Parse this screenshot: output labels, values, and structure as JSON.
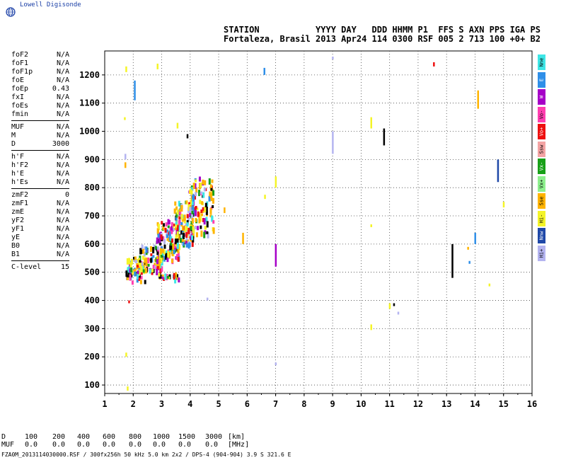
{
  "logo": {
    "text": "Lowell Digisonde",
    "icon": "globe-icon"
  },
  "header": {
    "labels_line": "STATION           YYYY DAY   DDD HHMM P1  FFS S AXN PPS IGA PS",
    "values_line": "Fortaleza, Brasil 2013 Apr24 114 0300 RSF 005 2 713 100 +0+ B2"
  },
  "params": {
    "groups": [
      [
        {
          "label": "foF2",
          "value": "N/A"
        },
        {
          "label": "foF1",
          "value": "N/A"
        },
        {
          "label": "foF1p",
          "value": "N/A"
        },
        {
          "label": "foE",
          "value": "N/A"
        },
        {
          "label": "foEp",
          "value": "0.43"
        },
        {
          "label": "fxI",
          "value": "N/A"
        },
        {
          "label": "foEs",
          "value": "N/A"
        },
        {
          "label": "fmin",
          "value": "N/A"
        }
      ],
      [
        {
          "label": "MUF",
          "value": "N/A"
        },
        {
          "label": "M",
          "value": "N/A"
        },
        {
          "label": "D",
          "value": "3000"
        }
      ],
      [
        {
          "label": "h'F",
          "value": "N/A"
        },
        {
          "label": "h'F2",
          "value": "N/A"
        },
        {
          "label": "h'E",
          "value": "N/A"
        },
        {
          "label": "h'Es",
          "value": "N/A"
        }
      ],
      [
        {
          "label": "zmF2",
          "value": "0"
        },
        {
          "label": "zmF1",
          "value": "N/A"
        },
        {
          "label": "zmE",
          "value": "N/A"
        },
        {
          "label": "yF2",
          "value": "N/A"
        },
        {
          "label": "yF1",
          "value": "N/A"
        },
        {
          "label": "yE",
          "value": "N/A"
        },
        {
          "label": "B0",
          "value": "N/A"
        },
        {
          "label": "B1",
          "value": "N/A"
        }
      ],
      [
        {
          "label": "C-level",
          "value": "15"
        }
      ]
    ]
  },
  "legend": [
    {
      "label": "Nne",
      "color": "#3ee6e6"
    },
    {
      "label": "E",
      "color": "#2f8fe8"
    },
    {
      "label": "W",
      "color": "#a600c8"
    },
    {
      "label": "Vo-",
      "color": "#ff3fb0"
    },
    {
      "label": "Vo+",
      "color": "#ee1010"
    },
    {
      "label": "Ssw",
      "color": "#f4a4a4"
    },
    {
      "label": "Vx-",
      "color": "#18a018"
    },
    {
      "label": "Vx+",
      "color": "#8ef08e"
    },
    {
      "label": "Sse",
      "color": "#ffb400"
    },
    {
      "label": "Hi-",
      "color": "#f4f428"
    },
    {
      "label": "Nnw",
      "color": "#1f48a8"
    },
    {
      "label": "Hi+",
      "color": "#b4b4f0"
    }
  ],
  "chart_data": {
    "type": "scatter",
    "x_ticks": [
      "1",
      "2",
      "3",
      "4",
      "5",
      "6",
      "7",
      "8",
      "9",
      "10",
      "11",
      "12",
      "13",
      "14",
      "15",
      "16"
    ],
    "y_ticks": [
      "100",
      "200",
      "300",
      "400",
      "500",
      "600",
      "700",
      "800",
      "900",
      "1000",
      "1100",
      "1200"
    ],
    "xlim": [
      1,
      16
    ],
    "ylim": [
      70,
      1285
    ],
    "grid": true,
    "clusters": [
      {
        "x": [
          1.7,
          2.4
        ],
        "y": [
          470,
          560
        ],
        "n": 60
      },
      {
        "x": [
          2.2,
          3.0
        ],
        "y": [
          510,
          600
        ],
        "n": 80
      },
      {
        "x": [
          2.8,
          3.6
        ],
        "y": [
          540,
          690
        ],
        "n": 120
      },
      {
        "x": [
          3.4,
          4.1
        ],
        "y": [
          600,
          760
        ],
        "n": 120
      },
      {
        "x": [
          3.9,
          4.8
        ],
        "y": [
          640,
          840
        ],
        "n": 110
      },
      {
        "x": [
          2.8,
          3.6
        ],
        "y": [
          480,
          500
        ],
        "n": 25
      }
    ],
    "streaks": [
      {
        "x": 1.75,
        "y1": 1210,
        "y2": 1230,
        "color": "#f4f428"
      },
      {
        "x": 2.05,
        "y1": 1110,
        "y2": 1180,
        "color": "#2f8fe8"
      },
      {
        "x": 2.85,
        "y1": 1220,
        "y2": 1240,
        "color": "#f4f428"
      },
      {
        "x": 3.55,
        "y1": 1010,
        "y2": 1030,
        "color": "#f4f428"
      },
      {
        "x": 3.9,
        "y1": 975,
        "y2": 990,
        "color": "#000000"
      },
      {
        "x": 1.7,
        "y1": 1040,
        "y2": 1050,
        "color": "#f4f428"
      },
      {
        "x": 1.72,
        "y1": 900,
        "y2": 920,
        "color": "#b4b4f0"
      },
      {
        "x": 1.72,
        "y1": 870,
        "y2": 890,
        "color": "#ffb400"
      },
      {
        "x": 1.85,
        "y1": 390,
        "y2": 400,
        "color": "#ee1010"
      },
      {
        "x": 1.75,
        "y1": 200,
        "y2": 215,
        "color": "#f4f428"
      },
      {
        "x": 6.6,
        "y1": 1200,
        "y2": 1225,
        "color": "#2f8fe8"
      },
      {
        "x": 5.85,
        "y1": 600,
        "y2": 640,
        "color": "#ffb400"
      },
      {
        "x": 6.62,
        "y1": 760,
        "y2": 775,
        "color": "#f4f428"
      },
      {
        "x": 7.0,
        "y1": 520,
        "y2": 600,
        "color": "#a600c8"
      },
      {
        "x": 7.0,
        "y1": 800,
        "y2": 840,
        "color": "#f4f428"
      },
      {
        "x": 7.0,
        "y1": 170,
        "y2": 180,
        "color": "#b4b4f0"
      },
      {
        "x": 9.0,
        "y1": 920,
        "y2": 1000,
        "color": "#b4b4f0"
      },
      {
        "x": 10.35,
        "y1": 1010,
        "y2": 1050,
        "color": "#f4f428"
      },
      {
        "x": 10.35,
        "y1": 295,
        "y2": 315,
        "color": "#f4f428"
      },
      {
        "x": 10.35,
        "y1": 660,
        "y2": 670,
        "color": "#f4f428"
      },
      {
        "x": 10.8,
        "y1": 950,
        "y2": 1010,
        "color": "#000000"
      },
      {
        "x": 11.0,
        "y1": 370,
        "y2": 390,
        "color": "#f4f428"
      },
      {
        "x": 11.15,
        "y1": 380,
        "y2": 390,
        "color": "#000000"
      },
      {
        "x": 11.3,
        "y1": 350,
        "y2": 360,
        "color": "#b4b4f0"
      },
      {
        "x": 12.55,
        "y1": 1230,
        "y2": 1245,
        "color": "#ee1010"
      },
      {
        "x": 13.2,
        "y1": 480,
        "y2": 600,
        "color": "#000000"
      },
      {
        "x": 13.75,
        "y1": 580,
        "y2": 590,
        "color": "#ffb400"
      },
      {
        "x": 13.8,
        "y1": 530,
        "y2": 540,
        "color": "#2f8fe8"
      },
      {
        "x": 14.0,
        "y1": 600,
        "y2": 640,
        "color": "#2f8fe8"
      },
      {
        "x": 14.1,
        "y1": 1080,
        "y2": 1145,
        "color": "#ffb400"
      },
      {
        "x": 14.5,
        "y1": 450,
        "y2": 460,
        "color": "#f4f428"
      },
      {
        "x": 14.8,
        "y1": 820,
        "y2": 900,
        "color": "#1f48a8"
      },
      {
        "x": 15.0,
        "y1": 730,
        "y2": 750,
        "color": "#f4f428"
      },
      {
        "x": 9.0,
        "y1": 1255,
        "y2": 1265,
        "color": "#b4b4f0"
      },
      {
        "x": 1.8,
        "y1": 80,
        "y2": 95,
        "color": "#f4f428"
      },
      {
        "x": 5.2,
        "y1": 710,
        "y2": 730,
        "color": "#ffb400"
      },
      {
        "x": 4.6,
        "y1": 400,
        "y2": 410,
        "color": "#b4b4f0"
      }
    ]
  },
  "footer": {
    "d_label": "D",
    "d_values": [
      "100",
      "200",
      "400",
      "600",
      "800",
      "1000",
      "1500",
      "3000",
      "[km]"
    ],
    "muf_label": "MUF",
    "muf_values": [
      "0.0",
      "0.0",
      "0.0",
      "0.0",
      "0.0",
      "0.0",
      "0.0",
      "0.0",
      "[MHz]"
    ],
    "file_line": "FZA0M_2013114030000.RSF / 300fx256h 50 kHz 5.0 km 2x2 / DPS-4 (904-904)  3.9 S 321.6 E"
  }
}
